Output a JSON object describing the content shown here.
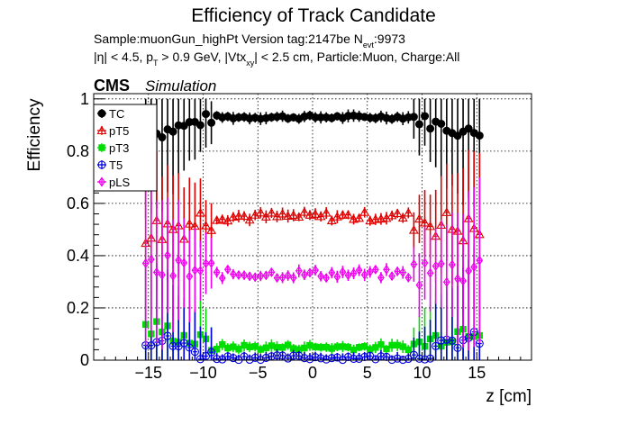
{
  "chart_data": {
    "type": "scatter",
    "title": "Efficiency of Track Candidate",
    "subtitle_line1_a": "Sample:muonGun_highPt   Version tag:2147be  N",
    "subtitle_line1_sub": "evt",
    "subtitle_line1_b": ":9973",
    "subtitle_line2_a": "|η| < 4.5, p",
    "subtitle_line2_sub1": "T",
    "subtitle_line2_b": " > 0.9 GeV, |Vtx",
    "subtitle_line2_sub2": "xy",
    "subtitle_line2_c": "| < 2.5 cm, Particle:Muon, Charge:All",
    "cms_label": "CMS",
    "sim_label": "Simulation",
    "xlabel": "z [cm]",
    "ylabel": "Efficiency",
    "xlim": [
      -20,
      20
    ],
    "ylim": [
      0,
      1.02
    ],
    "xticks": [
      -15,
      -10,
      -5,
      0,
      5,
      10,
      15
    ],
    "xtick_labels": [
      "−15",
      "−10",
      "−5",
      "0",
      "5",
      "10",
      "15"
    ],
    "yticks": [
      0,
      0.2,
      0.4,
      0.6,
      0.8,
      1
    ],
    "ytick_labels": [
      "0",
      "0.2",
      "0.4",
      "0.6",
      "0.8",
      "1"
    ],
    "grid": true,
    "legend_position": "top-left",
    "series": [
      {
        "name": "TC",
        "color": "#000000",
        "marker": "filled-circle",
        "profile": {
          "center": 0.93,
          "edge": 0.87,
          "spread": 0.04
        }
      },
      {
        "name": "pT5",
        "color": "#dd0000",
        "marker": "open-triangle",
        "profile": {
          "center": 0.55,
          "edge": 0.5,
          "spread": 0.1
        }
      },
      {
        "name": "pT3",
        "color": "#00dd00",
        "marker": "filled-square",
        "profile": {
          "center": 0.05,
          "edge": 0.12,
          "spread": 0.06
        }
      },
      {
        "name": "T5",
        "color": "#0000dd",
        "marker": "open-circle",
        "profile": {
          "center": 0.01,
          "edge": 0.08,
          "spread": 0.05
        }
      },
      {
        "name": "pLS",
        "color": "#ee00ee",
        "marker": "open-diamond",
        "profile": {
          "center": 0.33,
          "edge": 0.35,
          "spread": 0.1
        }
      }
    ]
  }
}
